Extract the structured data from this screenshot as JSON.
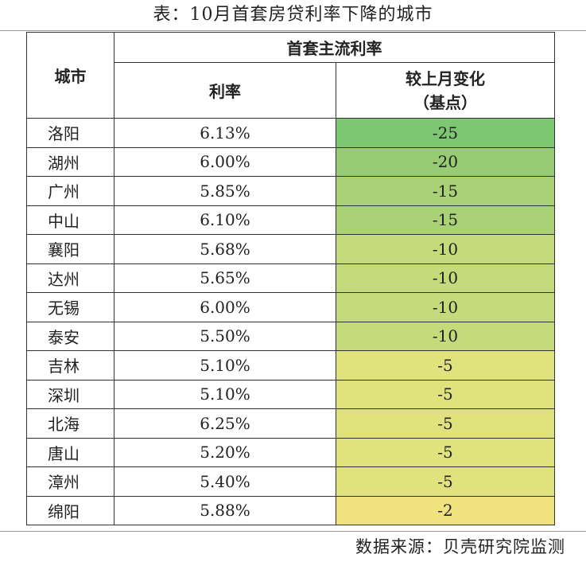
{
  "title": "表：10月首套房贷利率下降的城市",
  "table": {
    "header": {
      "city": "城市",
      "group": "首套主流利率",
      "rate": "利率",
      "change_line1": "较上月变化",
      "change_line2": "（基点）"
    },
    "rows": [
      {
        "city": "洛阳",
        "rate": "6.13%",
        "change": "-25",
        "color": "#7dc672"
      },
      {
        "city": "湖州",
        "rate": "6.00%",
        "change": "-20",
        "color": "#97cc75"
      },
      {
        "city": "广州",
        "rate": "5.85%",
        "change": "-15",
        "color": "#a9d277"
      },
      {
        "city": "中山",
        "rate": "6.10%",
        "change": "-15",
        "color": "#a9d277"
      },
      {
        "city": "襄阳",
        "rate": "5.68%",
        "change": "-10",
        "color": "#c4db7b"
      },
      {
        "city": "达州",
        "rate": "5.65%",
        "change": "-10",
        "color": "#c4db7b"
      },
      {
        "city": "无锡",
        "rate": "6.00%",
        "change": "-10",
        "color": "#c4db7b"
      },
      {
        "city": "泰安",
        "rate": "5.50%",
        "change": "-10",
        "color": "#c4db7b"
      },
      {
        "city": "吉林",
        "rate": "5.10%",
        "change": "-5",
        "color": "#e0e27e"
      },
      {
        "city": "深圳",
        "rate": "5.10%",
        "change": "-5",
        "color": "#e0e27e"
      },
      {
        "city": "北海",
        "rate": "6.25%",
        "change": "-5",
        "color": "#e0e27e"
      },
      {
        "city": "唐山",
        "rate": "5.20%",
        "change": "-5",
        "color": "#e0e27e"
      },
      {
        "city": "漳州",
        "rate": "5.40%",
        "change": "-5",
        "color": "#e0e27e"
      },
      {
        "city": "绵阳",
        "rate": "5.88%",
        "change": "-2",
        "color": "#f0e37f"
      }
    ]
  },
  "source": "数据来源：贝壳研究院监测"
}
